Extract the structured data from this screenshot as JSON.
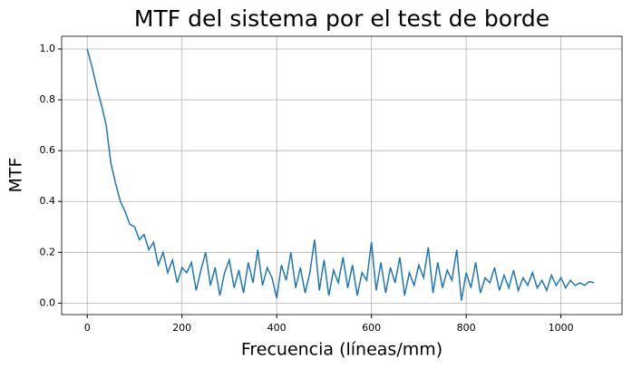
{
  "chart_data": {
    "type": "line",
    "title": "MTF del sistema por el test de borde",
    "x_label": "Frecuencia (líneas/mm)",
    "y_label": "MTF",
    "x": [
      0,
      10,
      20,
      30,
      40,
      50,
      60,
      70,
      80,
      90,
      100,
      110,
      120,
      130,
      140,
      150,
      160,
      170,
      180,
      190,
      200,
      210,
      220,
      230,
      240,
      250,
      260,
      270,
      280,
      290,
      300,
      310,
      320,
      330,
      340,
      350,
      360,
      370,
      380,
      390,
      400,
      410,
      420,
      430,
      440,
      450,
      460,
      470,
      480,
      490,
      500,
      510,
      520,
      530,
      540,
      550,
      560,
      570,
      580,
      590,
      600,
      610,
      620,
      630,
      640,
      650,
      660,
      670,
      680,
      690,
      700,
      710,
      720,
      730,
      740,
      750,
      760,
      770,
      780,
      790,
      800,
      810,
      820,
      830,
      840,
      850,
      860,
      870,
      880,
      890,
      900,
      910,
      920,
      930,
      940,
      950,
      960,
      970,
      980,
      990,
      1000,
      1010,
      1020,
      1030,
      1040,
      1050,
      1060,
      1070
    ],
    "series": [
      {
        "name": "MTF",
        "color": "#1f77b4",
        "values": [
          1.0,
          0.93,
          0.85,
          0.78,
          0.7,
          0.55,
          0.47,
          0.4,
          0.36,
          0.31,
          0.3,
          0.25,
          0.27,
          0.21,
          0.24,
          0.15,
          0.2,
          0.12,
          0.17,
          0.08,
          0.14,
          0.12,
          0.16,
          0.05,
          0.13,
          0.2,
          0.07,
          0.14,
          0.03,
          0.12,
          0.17,
          0.06,
          0.13,
          0.04,
          0.16,
          0.08,
          0.21,
          0.07,
          0.14,
          0.1,
          0.02,
          0.15,
          0.09,
          0.2,
          0.06,
          0.14,
          0.04,
          0.12,
          0.25,
          0.05,
          0.17,
          0.03,
          0.13,
          0.08,
          0.18,
          0.06,
          0.15,
          0.03,
          0.12,
          0.09,
          0.24,
          0.05,
          0.16,
          0.04,
          0.14,
          0.08,
          0.18,
          0.03,
          0.12,
          0.07,
          0.15,
          0.1,
          0.22,
          0.04,
          0.16,
          0.06,
          0.13,
          0.09,
          0.21,
          0.01,
          0.12,
          0.06,
          0.16,
          0.04,
          0.1,
          0.08,
          0.14,
          0.05,
          0.11,
          0.06,
          0.13,
          0.05,
          0.1,
          0.07,
          0.12,
          0.06,
          0.09,
          0.05,
          0.11,
          0.07,
          0.1,
          0.06,
          0.09,
          0.07,
          0.08,
          0.07,
          0.085,
          0.08
        ]
      }
    ],
    "xlim": [
      -54,
      1129
    ],
    "ylim": [
      -0.045,
      1.05
    ],
    "xticks": [
      0,
      200,
      400,
      600,
      800,
      1000
    ],
    "yticks": [
      {
        "value": 0,
        "label": "0.0"
      },
      0.2,
      0.4,
      0.6,
      0.8,
      {
        "value": 1,
        "label": "1.0"
      }
    ],
    "grid": true
  }
}
